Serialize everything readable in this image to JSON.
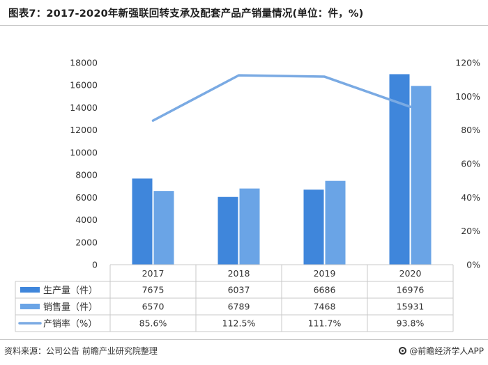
{
  "header": {
    "title": "图表7：2017-2020年新强联回转支承及配套产品产销量情况(单位：件，%)"
  },
  "footer": {
    "source": "资料来源：公司公告 前瞻产业研究院整理",
    "brand": "@前瞻经济学人APP"
  },
  "colors": {
    "production": "#3f86db",
    "sales": "#6aa4e6",
    "rate": "#7aaae3",
    "grid": "#e3e3e3",
    "table_border": "#c8c8c8"
  },
  "chart_data": {
    "type": "bar",
    "categories": [
      "2017",
      "2018",
      "2019",
      "2020"
    ],
    "series": [
      {
        "name": "生产量（件）",
        "type": "bar",
        "axis": "left",
        "values": [
          7675,
          6037,
          6686,
          16976
        ],
        "labels": [
          "7675",
          "6037",
          "6686",
          "16976"
        ]
      },
      {
        "name": "销售量（件）",
        "type": "bar",
        "axis": "left",
        "values": [
          6570,
          6789,
          7468,
          15931
        ],
        "labels": [
          "6570",
          "6789",
          "7468",
          "15931"
        ]
      },
      {
        "name": "产销率（%）",
        "type": "line",
        "axis": "right",
        "values": [
          85.6,
          112.5,
          111.7,
          93.8
        ],
        "labels": [
          "85.6%",
          "112.5%",
          "111.7%",
          "93.8%"
        ]
      }
    ],
    "left_axis": {
      "range": [
        0,
        18000
      ],
      "ticks": [
        "0",
        "2000",
        "4000",
        "6000",
        "8000",
        "10000",
        "12000",
        "14000",
        "16000",
        "18000"
      ]
    },
    "right_axis": {
      "range": [
        0,
        120
      ],
      "ticks": [
        "0%",
        "20%",
        "40%",
        "60%",
        "80%",
        "100%",
        "120%"
      ]
    },
    "legend_placement": "data-table-left",
    "grid": false
  }
}
